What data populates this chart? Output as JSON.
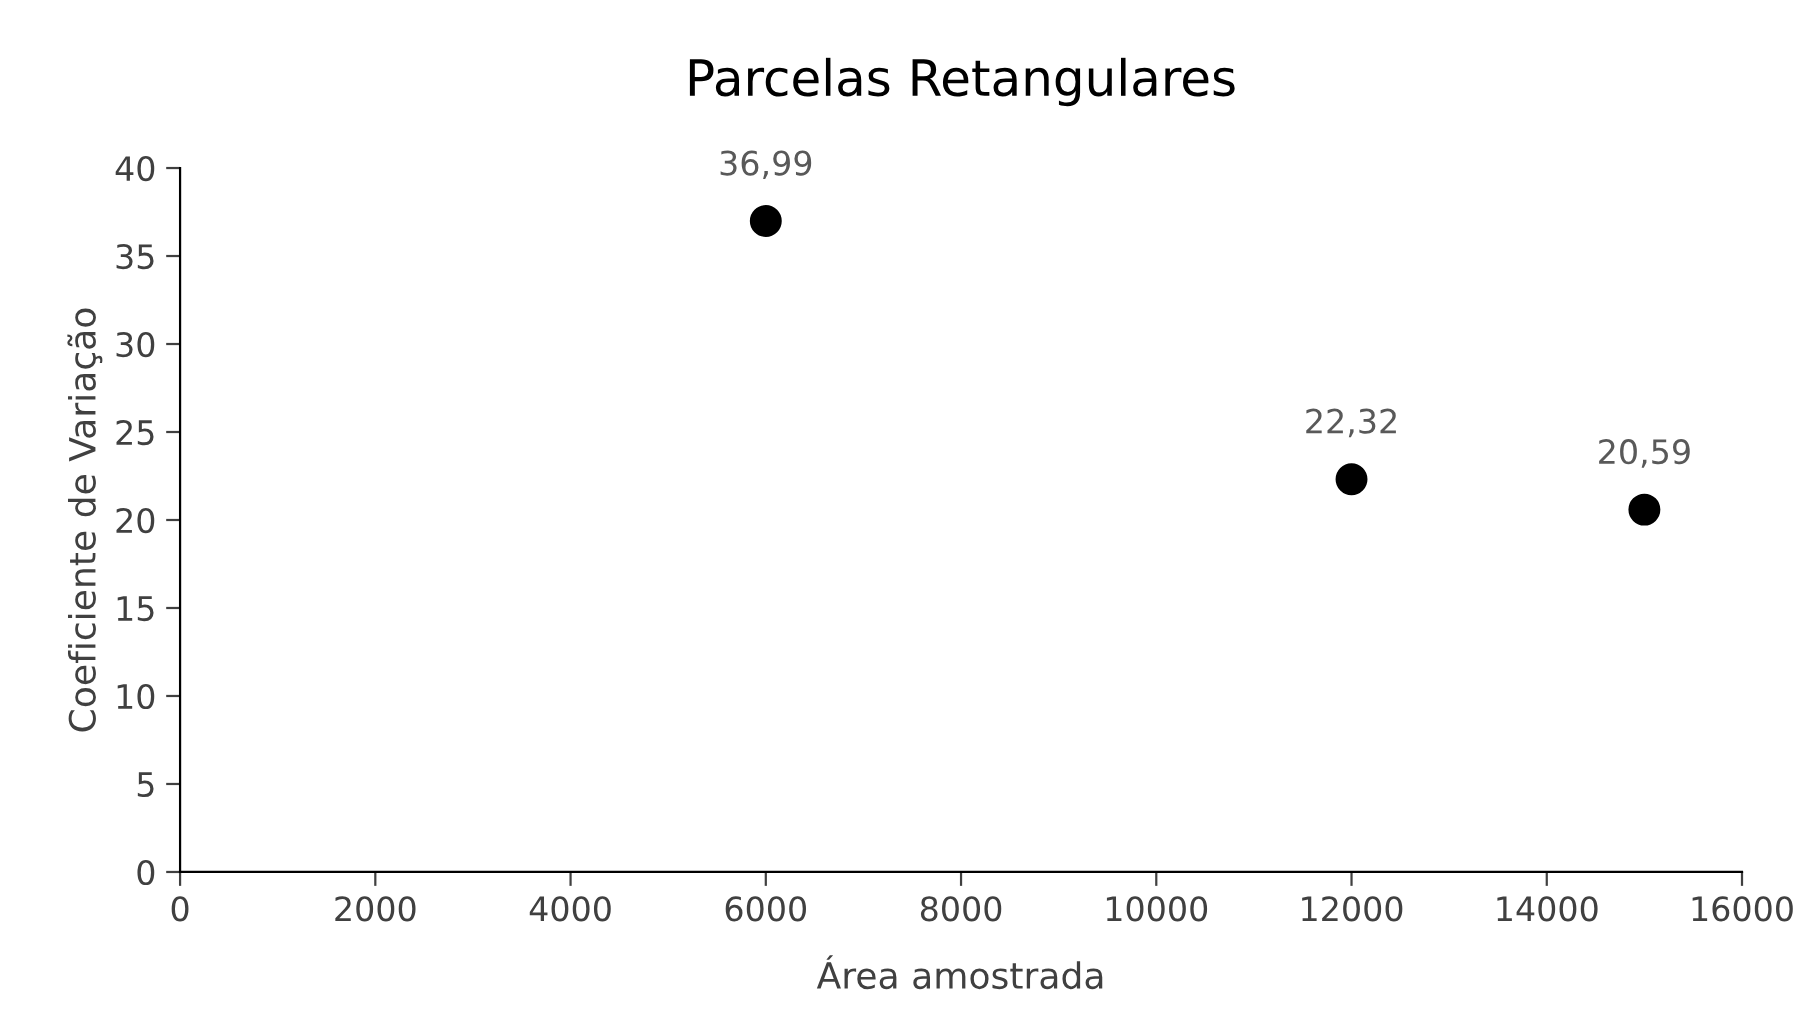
{
  "chart_data": {
    "type": "scatter",
    "title": "Parcelas Retangulares",
    "xlabel": "Área amostrada",
    "ylabel": "Coeficiente de Variação",
    "x": [
      6000,
      12000,
      15000
    ],
    "series": [
      {
        "color": "#000000",
        "values": [
          36.99,
          22.32,
          20.59
        ],
        "value_labels": [
          "36,99",
          "22,32",
          "20,59"
        ]
      }
    ],
    "xlim": [
      0,
      16000
    ],
    "xticks": [
      0,
      2000,
      4000,
      6000,
      8000,
      10000,
      12000,
      14000,
      16000
    ],
    "ylim": [
      0,
      40
    ],
    "yticks": [
      0,
      5,
      10,
      15,
      20,
      25,
      30,
      35,
      40
    ],
    "grid": false,
    "legend": false,
    "marker": "circle"
  }
}
